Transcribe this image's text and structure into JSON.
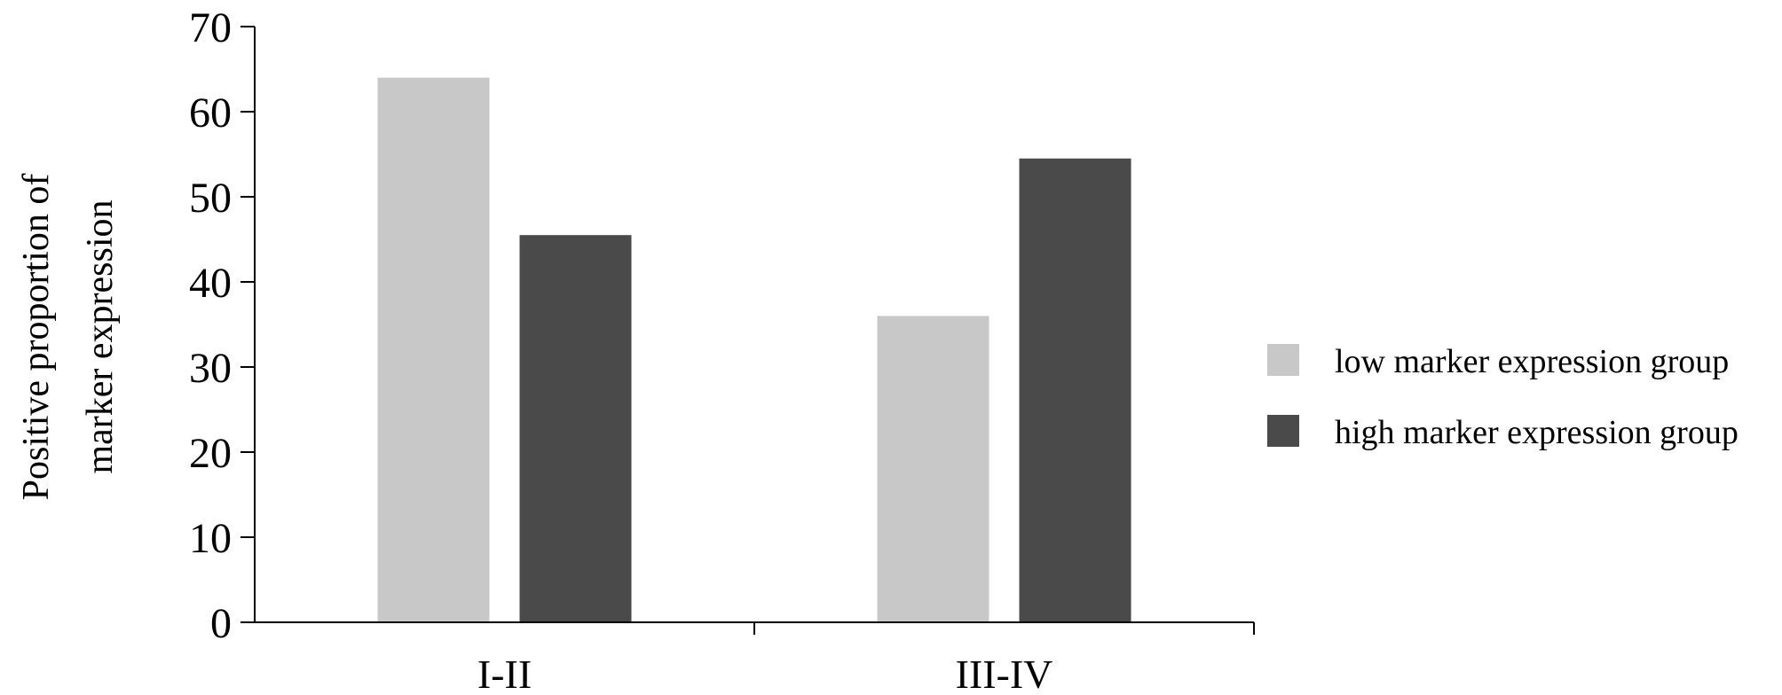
{
  "chart_data": {
    "type": "bar",
    "title": "",
    "xlabel": "",
    "ylabel_lines": [
      "Positive proportion of",
      "marker expression"
    ],
    "categories": [
      "I-II",
      "III-IV"
    ],
    "ylim": [
      0,
      70
    ],
    "yticks": [
      0,
      10,
      20,
      30,
      40,
      50,
      60,
      70
    ],
    "grid": false,
    "legend_position": "right",
    "series": [
      {
        "name": "low marker expression group",
        "values": [
          64,
          36
        ],
        "color": "#c8c8c8"
      },
      {
        "name": "high marker expression group",
        "values": [
          45.5,
          54.5
        ],
        "color": "#4a4a4a"
      }
    ]
  }
}
